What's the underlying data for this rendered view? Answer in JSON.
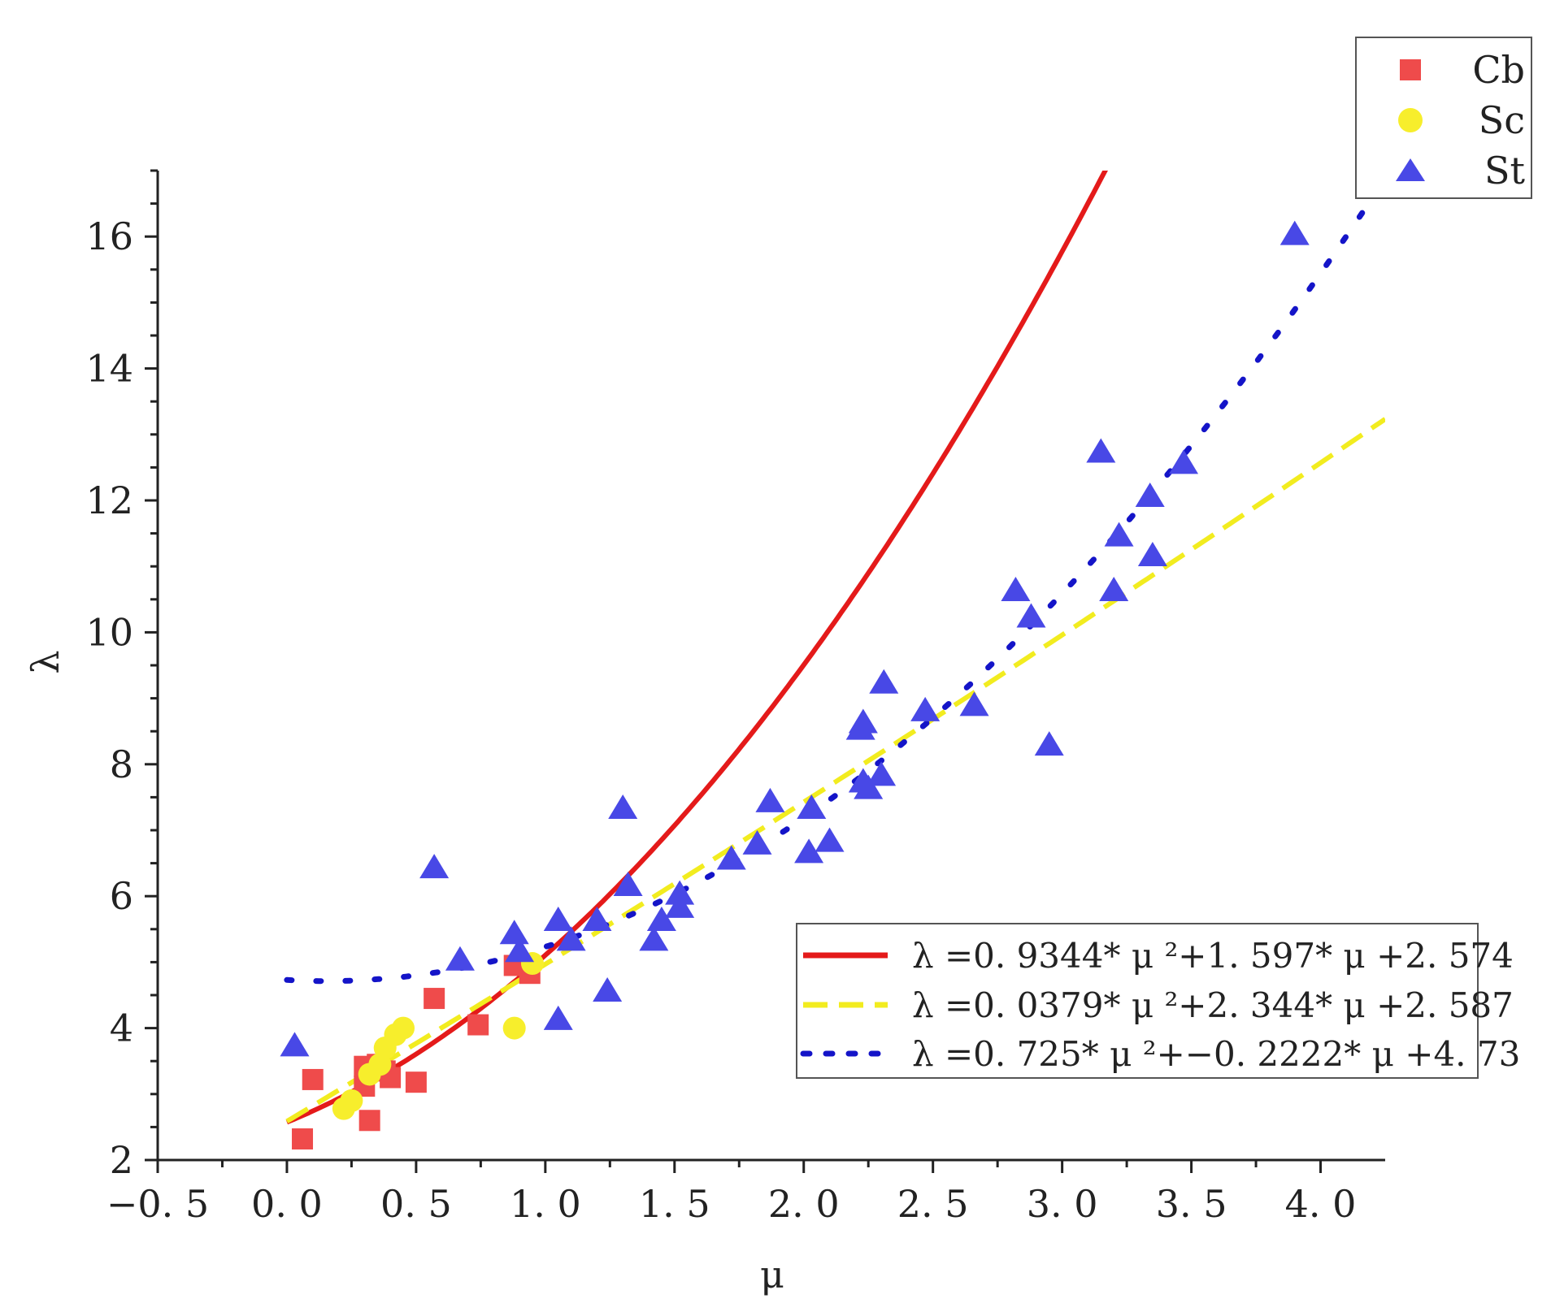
{
  "chart_data": {
    "type": "scatter",
    "title": "",
    "xlabel": "μ",
    "ylabel": "λ",
    "xlim": [
      -0.5,
      4.25
    ],
    "ylim": [
      2,
      17
    ],
    "xticks": [
      -0.5,
      0.0,
      0.5,
      1.0,
      1.5,
      2.0,
      2.5,
      3.0,
      3.5,
      4.0
    ],
    "xtick_labels": [
      "−0. 5",
      "0. 0",
      "0. 5",
      "1. 0",
      "1. 5",
      "2. 0",
      "2. 5",
      "3. 0",
      "3. 5",
      "4. 0"
    ],
    "yticks": [
      2,
      4,
      6,
      8,
      10,
      12,
      14,
      16
    ],
    "ytick_labels": [
      "2",
      "4",
      "6",
      "8",
      "10",
      "12",
      "14",
      "16"
    ],
    "legend_position": "top-right",
    "series": [
      {
        "name": "Cb",
        "marker": "square",
        "color": "#ef4b4b",
        "points": [
          [
            0.06,
            2.32
          ],
          [
            0.1,
            3.22
          ],
          [
            0.3,
            3.12
          ],
          [
            0.3,
            3.42
          ],
          [
            0.32,
            2.6
          ],
          [
            0.35,
            3.45
          ],
          [
            0.38,
            3.35
          ],
          [
            0.4,
            3.25
          ],
          [
            0.5,
            3.18
          ],
          [
            0.57,
            4.45
          ],
          [
            0.74,
            4.05
          ],
          [
            0.88,
            4.95
          ],
          [
            0.94,
            4.83
          ]
        ]
      },
      {
        "name": "Sc",
        "marker": "circle",
        "color": "#f7ee2c",
        "points": [
          [
            0.22,
            2.78
          ],
          [
            0.25,
            2.9
          ],
          [
            0.32,
            3.3
          ],
          [
            0.36,
            3.45
          ],
          [
            0.38,
            3.7
          ],
          [
            0.42,
            3.9
          ],
          [
            0.45,
            4.0
          ],
          [
            0.88,
            4.0
          ],
          [
            0.95,
            4.98
          ]
        ]
      },
      {
        "name": "St",
        "marker": "triangle",
        "color": "#4848e6",
        "points": [
          [
            0.03,
            3.72
          ],
          [
            0.57,
            6.42
          ],
          [
            0.67,
            5.02
          ],
          [
            0.88,
            5.42
          ],
          [
            0.9,
            5.15
          ],
          [
            1.05,
            4.12
          ],
          [
            1.05,
            5.62
          ],
          [
            1.1,
            5.32
          ],
          [
            1.2,
            5.62
          ],
          [
            1.24,
            4.55
          ],
          [
            1.3,
            7.32
          ],
          [
            1.32,
            6.15
          ],
          [
            1.42,
            5.32
          ],
          [
            1.45,
            5.62
          ],
          [
            1.52,
            5.82
          ],
          [
            1.52,
            6.02
          ],
          [
            1.72,
            6.55
          ],
          [
            1.82,
            6.78
          ],
          [
            1.87,
            7.42
          ],
          [
            2.02,
            6.65
          ],
          [
            2.03,
            7.32
          ],
          [
            2.1,
            6.82
          ],
          [
            2.22,
            8.52
          ],
          [
            2.23,
            8.62
          ],
          [
            2.23,
            7.72
          ],
          [
            2.25,
            7.62
          ],
          [
            2.3,
            7.82
          ],
          [
            2.31,
            9.22
          ],
          [
            2.47,
            8.8
          ],
          [
            2.66,
            8.88
          ],
          [
            2.82,
            10.62
          ],
          [
            2.88,
            10.22
          ],
          [
            2.95,
            8.28
          ],
          [
            3.15,
            12.72
          ],
          [
            3.2,
            10.62
          ],
          [
            3.22,
            11.45
          ],
          [
            3.34,
            12.05
          ],
          [
            3.35,
            11.15
          ],
          [
            3.47,
            12.55
          ],
          [
            3.9,
            16.02
          ]
        ]
      }
    ],
    "fits": [
      {
        "series": "Cb",
        "label": "λ =0. 9344* μ ²+1. 597* μ +2. 574",
        "coefficients": [
          0.9344,
          1.597,
          2.574
        ],
        "x_range": [
          0.0,
          3.3
        ],
        "color": "#e41a1a",
        "style": "solid"
      },
      {
        "series": "Sc",
        "label": "λ =0. 0379* μ ²+2. 344* μ +2. 587",
        "coefficients": [
          0.0379,
          2.344,
          2.587
        ],
        "x_range": [
          0.0,
          4.25
        ],
        "color": "#f2ec1f",
        "style": "dashed"
      },
      {
        "series": "St",
        "label": "λ =0. 725* μ ²+−0. 2222* μ +4. 73",
        "coefficients": [
          0.725,
          -0.2222,
          4.73
        ],
        "x_range": [
          0.0,
          4.25
        ],
        "color": "#1414c8",
        "style": "dotted"
      }
    ]
  }
}
